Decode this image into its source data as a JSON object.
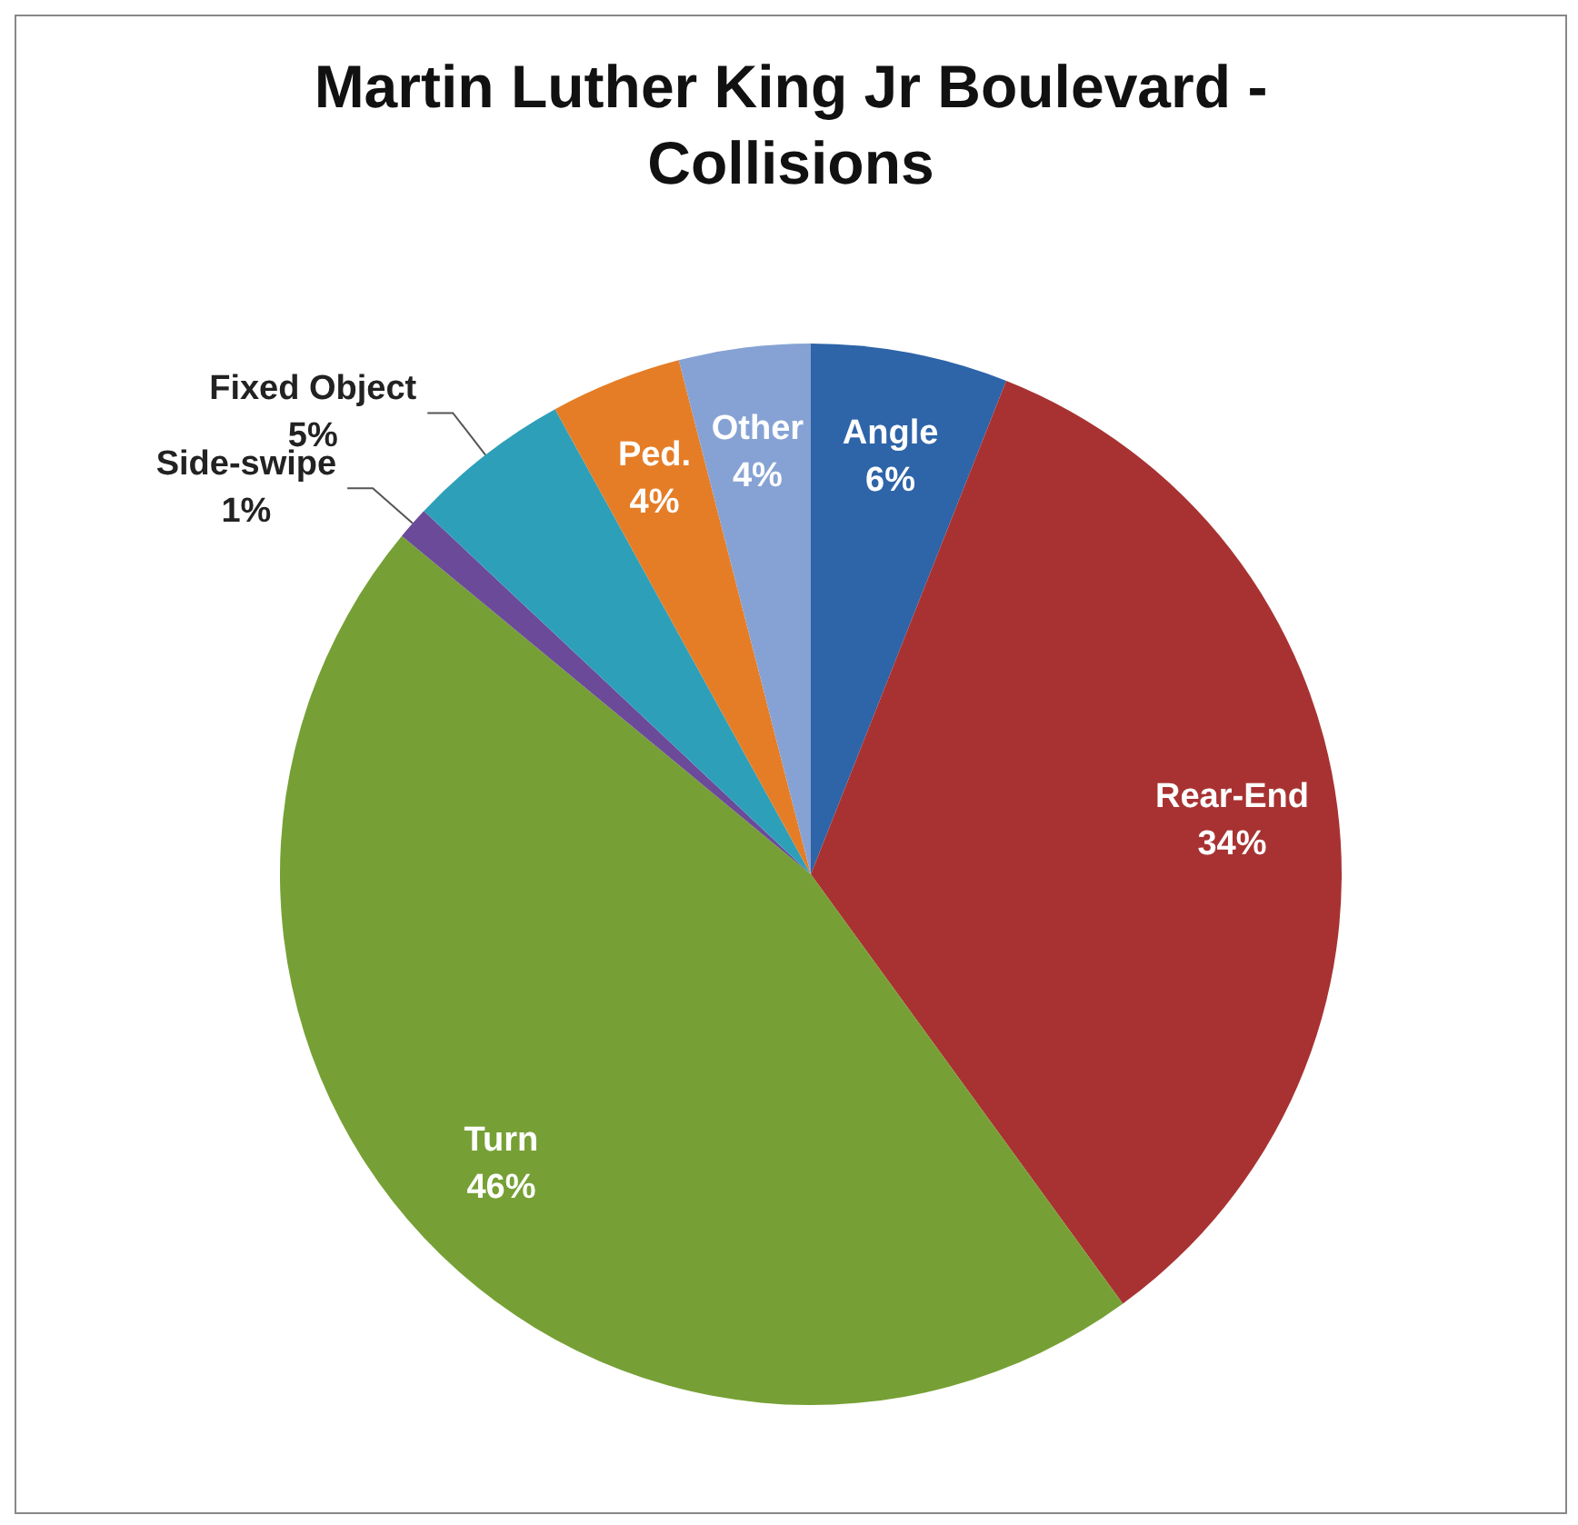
{
  "chart_data": {
    "type": "pie",
    "title": "Martin Luther King Jr Boulevard - Collisions",
    "categories": [
      "Angle",
      "Rear-End",
      "Turn",
      "Side-swipe",
      "Fixed Object",
      "Ped.",
      "Other"
    ],
    "values": [
      6,
      34,
      46,
      1,
      5,
      4,
      4
    ],
    "value_labels": [
      "6%",
      "34%",
      "46%",
      "1%",
      "5%",
      "4%",
      "4%"
    ],
    "colors": [
      "#2e64a8",
      "#a83232",
      "#76a035",
      "#6b4a9a",
      "#2e9fb8",
      "#e57d27",
      "#86a2d4"
    ],
    "legend": false
  }
}
